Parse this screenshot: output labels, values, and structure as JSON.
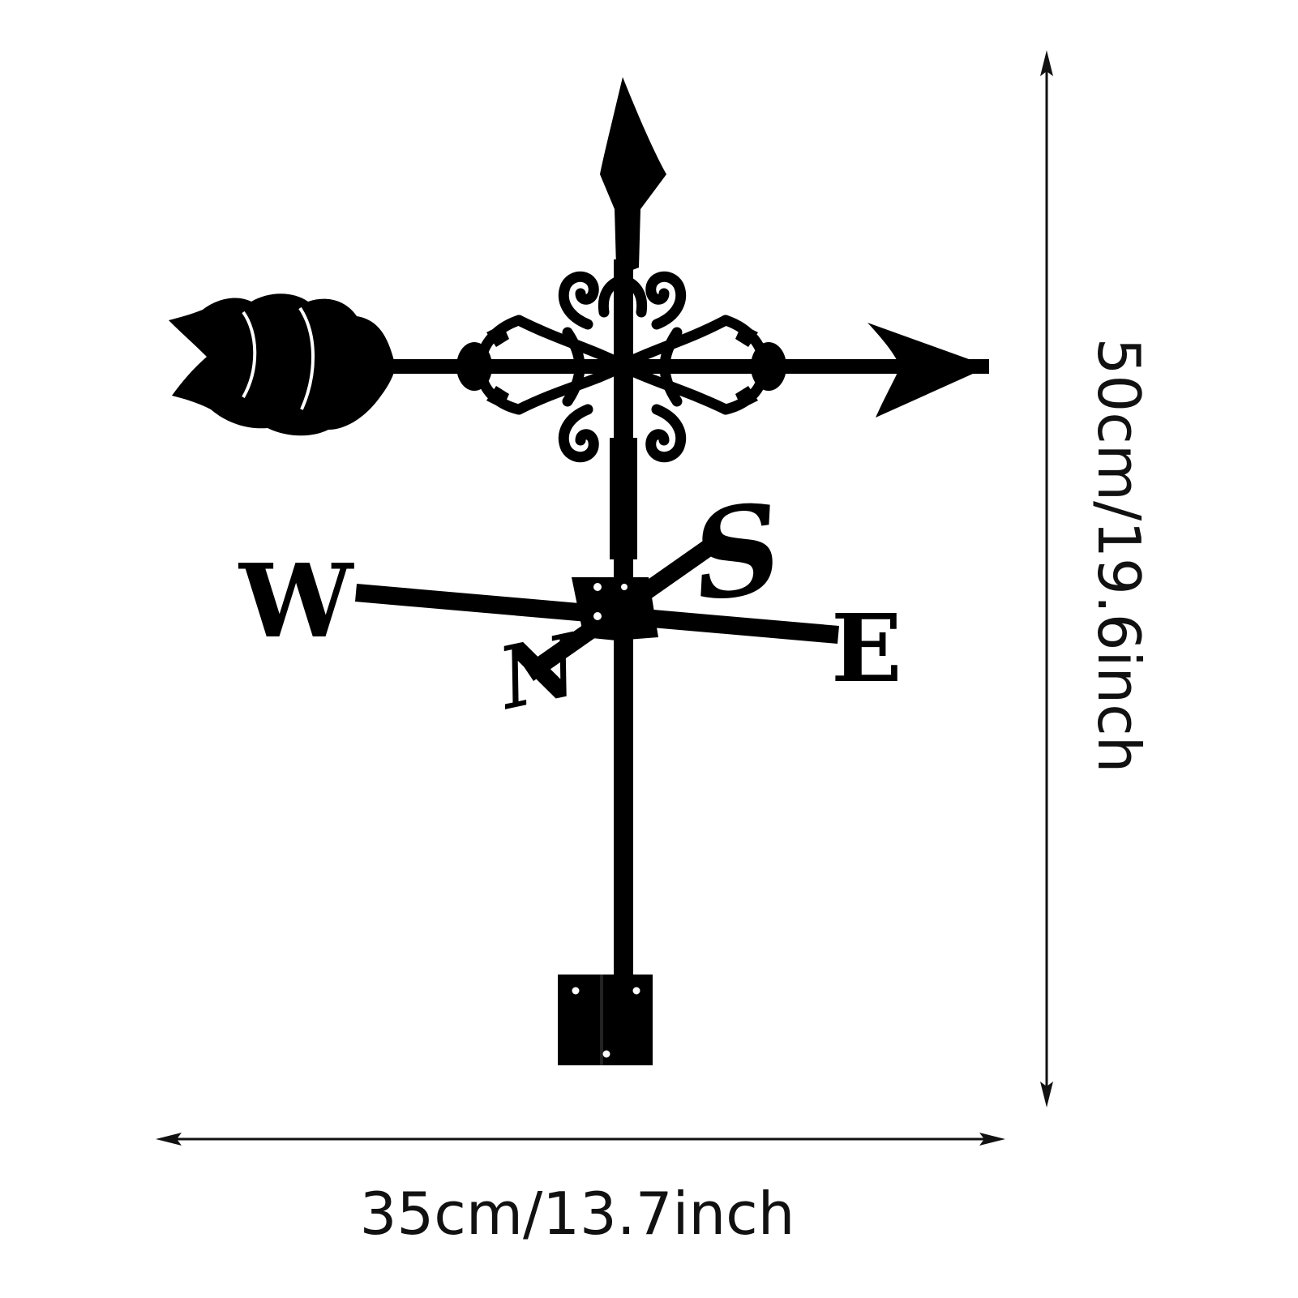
{
  "dimensions": {
    "width_label": "35cm/13.7inch",
    "height_label": "50cm/19.6inch"
  },
  "compass": {
    "west": "W",
    "east": "E",
    "north": "N",
    "south": "S"
  },
  "colors": {
    "silhouette": "#000000",
    "dimension_line": "#111111",
    "background": "#ffffff"
  }
}
